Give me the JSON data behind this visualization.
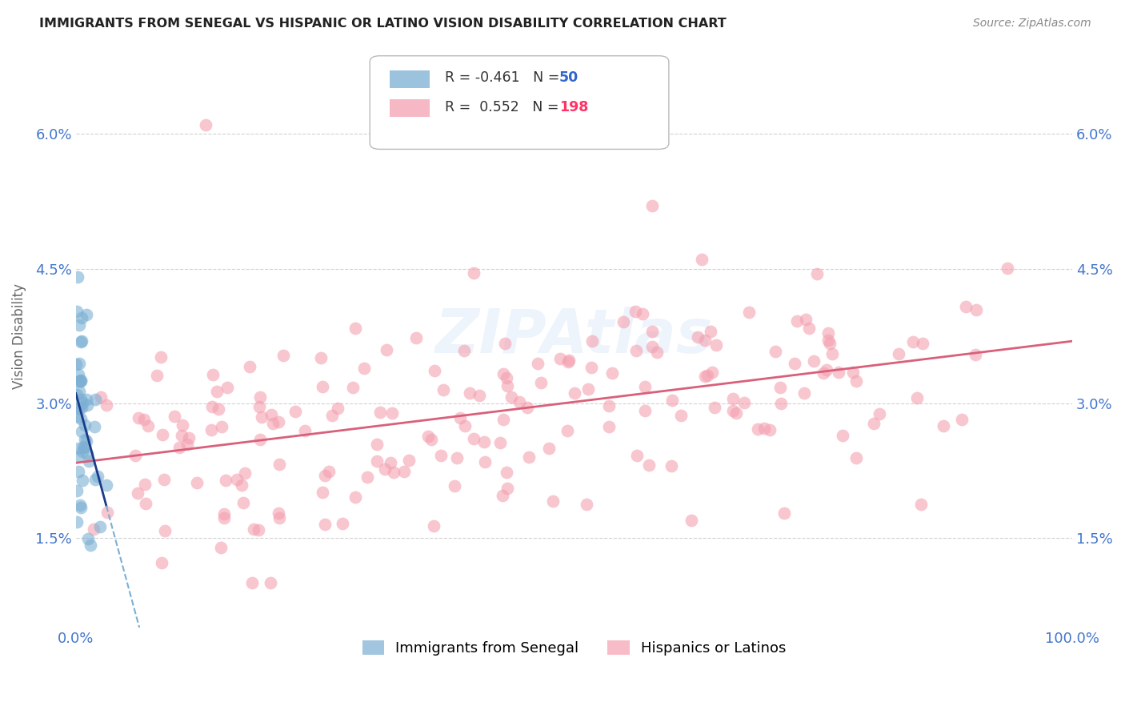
{
  "title": "IMMIGRANTS FROM SENEGAL VS HISPANIC OR LATINO VISION DISABILITY CORRELATION CHART",
  "source": "Source: ZipAtlas.com",
  "ylabel_label": "Vision Disability",
  "legend_blue_R": "-0.461",
  "legend_blue_N": "50",
  "legend_pink_R": "0.552",
  "legend_pink_N": "198",
  "legend_label_blue": "Immigrants from Senegal",
  "legend_label_pink": "Hispanics or Latinos",
  "blue_color": "#7BAFD4",
  "pink_color": "#F4A0B0",
  "blue_line_color": "#1A3A8A",
  "pink_line_color": "#D9607A",
  "watermark": "ZIPAtlas",
  "xlim": [
    0.0,
    1.0
  ],
  "ylim": [
    0.005,
    0.07
  ],
  "yticks": [
    0.015,
    0.03,
    0.045,
    0.06
  ],
  "ytick_labels": [
    "1.5%",
    "3.0%",
    "4.5%",
    "6.0%"
  ],
  "xticks": [
    0.0,
    1.0
  ],
  "xtick_labels": [
    "0.0%",
    "100.0%"
  ]
}
